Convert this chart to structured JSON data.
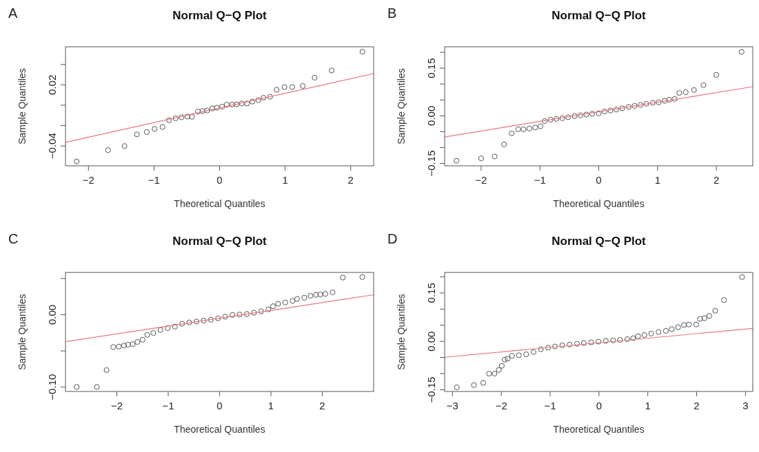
{
  "chart_data": [
    {
      "type": "scatter",
      "title": "Normal Q−Q Plot",
      "xlabel": "Theoretical Quantiles",
      "ylabel": "Sample Quantiles",
      "annotations": [
        "A"
      ],
      "marker": "circle",
      "xlim": [
        -2.35,
        2.35
      ],
      "ylim": [
        -0.0594,
        0.0573
      ],
      "xticks": [
        -2,
        -1,
        0,
        1,
        2
      ],
      "yticks": [
        -0.04,
        {
          "value": -0.02,
          "label": null
        },
        {
          "value": 0,
          "label": null
        },
        0.02,
        {
          "value": 0.04,
          "label": null
        }
      ],
      "series": [
        {
          "type": "scatter",
          "color": "#555555",
          "x": [
            -2.18,
            -1.7,
            -1.45,
            -1.26,
            -1.11,
            -0.99,
            -0.87,
            -0.77,
            -0.67,
            -0.58,
            -0.49,
            -0.42,
            -0.33,
            -0.26,
            -0.19,
            -0.11,
            -0.04,
            0.04,
            0.11,
            0.19,
            0.26,
            0.34,
            0.42,
            0.5,
            0.59,
            0.67,
            0.77,
            0.87,
            0.99,
            1.11,
            1.27,
            1.45,
            1.71,
            2.18
          ],
          "values": [
            -0.0551,
            -0.044,
            -0.04,
            -0.0286,
            -0.0263,
            -0.0232,
            -0.0213,
            -0.0147,
            -0.0128,
            -0.0118,
            -0.0111,
            -0.0114,
            -0.0062,
            -0.0057,
            -0.0052,
            -0.0031,
            -0.0024,
            -0.0014,
            0.0005,
            0.0007,
            0.0009,
            0.0017,
            0.0017,
            0.0036,
            0.005,
            0.0073,
            0.0083,
            0.0151,
            0.0178,
            0.0178,
            0.0189,
            0.027,
            0.0341,
            0.0525
          ]
        },
        {
          "type": "line",
          "marker": "none",
          "color": "#e8757f",
          "x": [
            -2.35,
            2.35
          ],
          "values": [
            -0.0364,
            0.031
          ]
        }
      ]
    },
    {
      "type": "scatter",
      "title": "Normal Q−Q Plot",
      "xlabel": "Theoretical Quantiles",
      "ylabel": "Sample Quantiles",
      "annotations": [
        "B"
      ],
      "marker": "circle",
      "xlim": [
        -2.62,
        2.62
      ],
      "ylim": [
        -0.1576,
        0.2174
      ],
      "xticks": [
        -2,
        -1,
        0,
        1,
        2
      ],
      "yticks": [
        {
          "value": -0.15,
          "label": "−0.15"
        },
        {
          "value": -0.1,
          "label": null
        },
        {
          "value": -0.05,
          "label": null
        },
        {
          "value": 0,
          "label": "0.00"
        },
        {
          "value": 0.05,
          "label": null
        },
        {
          "value": 0.1,
          "label": null
        },
        0.15,
        {
          "value": 0.2,
          "label": null
        }
      ],
      "series": [
        {
          "type": "scatter",
          "color": "#555555",
          "x": [
            -2.42,
            -2.0,
            -1.77,
            -1.61,
            -1.48,
            -1.37,
            -1.28,
            -1.18,
            -1.08,
            -0.99,
            -0.92,
            -0.82,
            -0.72,
            -0.62,
            -0.52,
            -0.41,
            -0.31,
            -0.21,
            -0.11,
            0.0,
            0.1,
            0.2,
            0.3,
            0.4,
            0.51,
            0.61,
            0.71,
            0.81,
            0.92,
            1.02,
            1.12,
            1.2,
            1.29,
            1.37,
            1.48,
            1.62,
            1.78,
            2.0,
            2.43
          ],
          "values": [
            -0.1417,
            -0.1341,
            -0.128,
            -0.0902,
            -0.0553,
            -0.0424,
            -0.0424,
            -0.0402,
            -0.0371,
            -0.0333,
            -0.0167,
            -0.0121,
            -0.0098,
            -0.0076,
            -0.0045,
            -0.0008,
            0.0015,
            0.0038,
            0.0061,
            0.0076,
            0.0136,
            0.0167,
            0.0197,
            0.0235,
            0.028,
            0.0311,
            0.0341,
            0.0379,
            0.0409,
            0.0424,
            0.047,
            0.0508,
            0.053,
            0.072,
            0.0742,
            0.0811,
            0.0962,
            0.1288,
            0.2015
          ]
        },
        {
          "type": "line",
          "marker": "none",
          "color": "#e8757f",
          "x": [
            -2.62,
            2.62
          ],
          "values": [
            -0.0667,
            0.0917
          ]
        }
      ]
    },
    {
      "type": "scatter",
      "title": "Normal Q−Q Plot",
      "xlabel": "Theoretical Quantiles",
      "ylabel": "Sample Quantiles",
      "annotations": [
        "C"
      ],
      "marker": "circle",
      "xlim": [
        -3,
        3
      ],
      "ylim": [
        -0.106,
        0.0584
      ],
      "xticks": [
        -2,
        -1,
        0,
        1,
        2
      ],
      "yticks": [
        {
          "value": -0.1,
          "label": "−0.10"
        },
        {
          "value": -0.05,
          "label": null
        },
        {
          "value": 0,
          "label": "0.00"
        },
        {
          "value": 0.05,
          "label": null
        }
      ],
      "series": [
        {
          "type": "scatter",
          "color": "#555555",
          "x": [
            -2.78,
            -2.39,
            -2.2,
            -2.07,
            -1.96,
            -1.86,
            -1.78,
            -1.69,
            -1.6,
            -1.5,
            -1.41,
            -1.29,
            -1.15,
            -1.01,
            -0.87,
            -0.73,
            -0.59,
            -0.45,
            -0.31,
            -0.17,
            -0.03,
            0.11,
            0.25,
            0.39,
            0.53,
            0.67,
            0.81,
            0.95,
            1.04,
            1.14,
            1.28,
            1.42,
            1.51,
            1.65,
            1.77,
            1.88,
            1.96,
            2.06,
            2.2,
            2.4,
            2.78
          ],
          "values": [
            -0.0997,
            -0.0997,
            -0.0765,
            -0.0446,
            -0.044,
            -0.0426,
            -0.0413,
            -0.0406,
            -0.0376,
            -0.0346,
            -0.0279,
            -0.0252,
            -0.0211,
            -0.0185,
            -0.0164,
            -0.0124,
            -0.0107,
            -0.0094,
            -0.0081,
            -0.007,
            -0.005,
            -0.0027,
            -0.0003,
            0.0003,
            0.001,
            0.0027,
            0.0047,
            0.0074,
            0.0117,
            0.0151,
            0.0168,
            0.0191,
            0.0218,
            0.0235,
            0.0262,
            0.0275,
            0.0279,
            0.0289,
            0.0309,
            0.0513,
            0.052
          ]
        },
        {
          "type": "line",
          "marker": "none",
          "color": "#e8757f",
          "x": [
            -3,
            3
          ],
          "values": [
            -0.0372,
            0.0275
          ]
        }
      ]
    },
    {
      "type": "scatter",
      "title": "Normal Q−Q Plot",
      "xlabel": "Theoretical Quantiles",
      "ylabel": "Sample Quantiles",
      "annotations": [
        "D"
      ],
      "marker": "circle",
      "xlim": [
        -3.16,
        3.15
      ],
      "ylim": [
        -0.1553,
        0.2136
      ],
      "xticks": [
        -3,
        -2,
        -1,
        0,
        1,
        2,
        3
      ],
      "yticks": [
        {
          "value": -0.15,
          "label": "−0.15"
        },
        {
          "value": -0.1,
          "label": null
        },
        {
          "value": -0.05,
          "label": null
        },
        {
          "value": 0,
          "label": "0.00"
        },
        {
          "value": 0.05,
          "label": null
        },
        {
          "value": 0.1,
          "label": null
        },
        0.15,
        {
          "value": 0.2,
          "label": null
        }
      ],
      "series": [
        {
          "type": "scatter",
          "color": "#555555",
          "x": [
            -2.91,
            -2.56,
            -2.37,
            -2.25,
            -2.14,
            -2.05,
            -1.99,
            -1.93,
            -1.87,
            -1.78,
            -1.64,
            -1.49,
            -1.34,
            -1.19,
            -1.04,
            -0.9,
            -0.75,
            -0.6,
            -0.45,
            -0.31,
            -0.16,
            -0.01,
            0.14,
            0.29,
            0.43,
            0.58,
            0.7,
            0.8,
            0.93,
            1.07,
            1.22,
            1.37,
            1.49,
            1.62,
            1.74,
            1.84,
            1.99,
            2.07,
            2.16,
            2.26,
            2.38,
            2.56,
            2.93
          ],
          "values": [
            -0.1424,
            -0.1356,
            -0.1288,
            -0.1,
            -0.1,
            -0.0886,
            -0.0758,
            -0.0568,
            -0.0538,
            -0.0447,
            -0.0432,
            -0.0402,
            -0.0333,
            -0.0242,
            -0.0197,
            -0.0159,
            -0.0121,
            -0.0098,
            -0.0076,
            -0.0053,
            -0.003,
            -0.0008,
            0.0015,
            0.003,
            0.0045,
            0.0068,
            0.0098,
            0.0159,
            0.0197,
            0.0242,
            0.0288,
            0.0326,
            0.0379,
            0.0439,
            0.0508,
            0.0523,
            0.0523,
            0.0697,
            0.072,
            0.0788,
            0.0947,
            0.128,
            0.1992
          ]
        },
        {
          "type": "line",
          "marker": "none",
          "color": "#e8757f",
          "x": [
            -3.16,
            3.15
          ],
          "values": [
            -0.0492,
            0.0402
          ]
        }
      ]
    }
  ]
}
